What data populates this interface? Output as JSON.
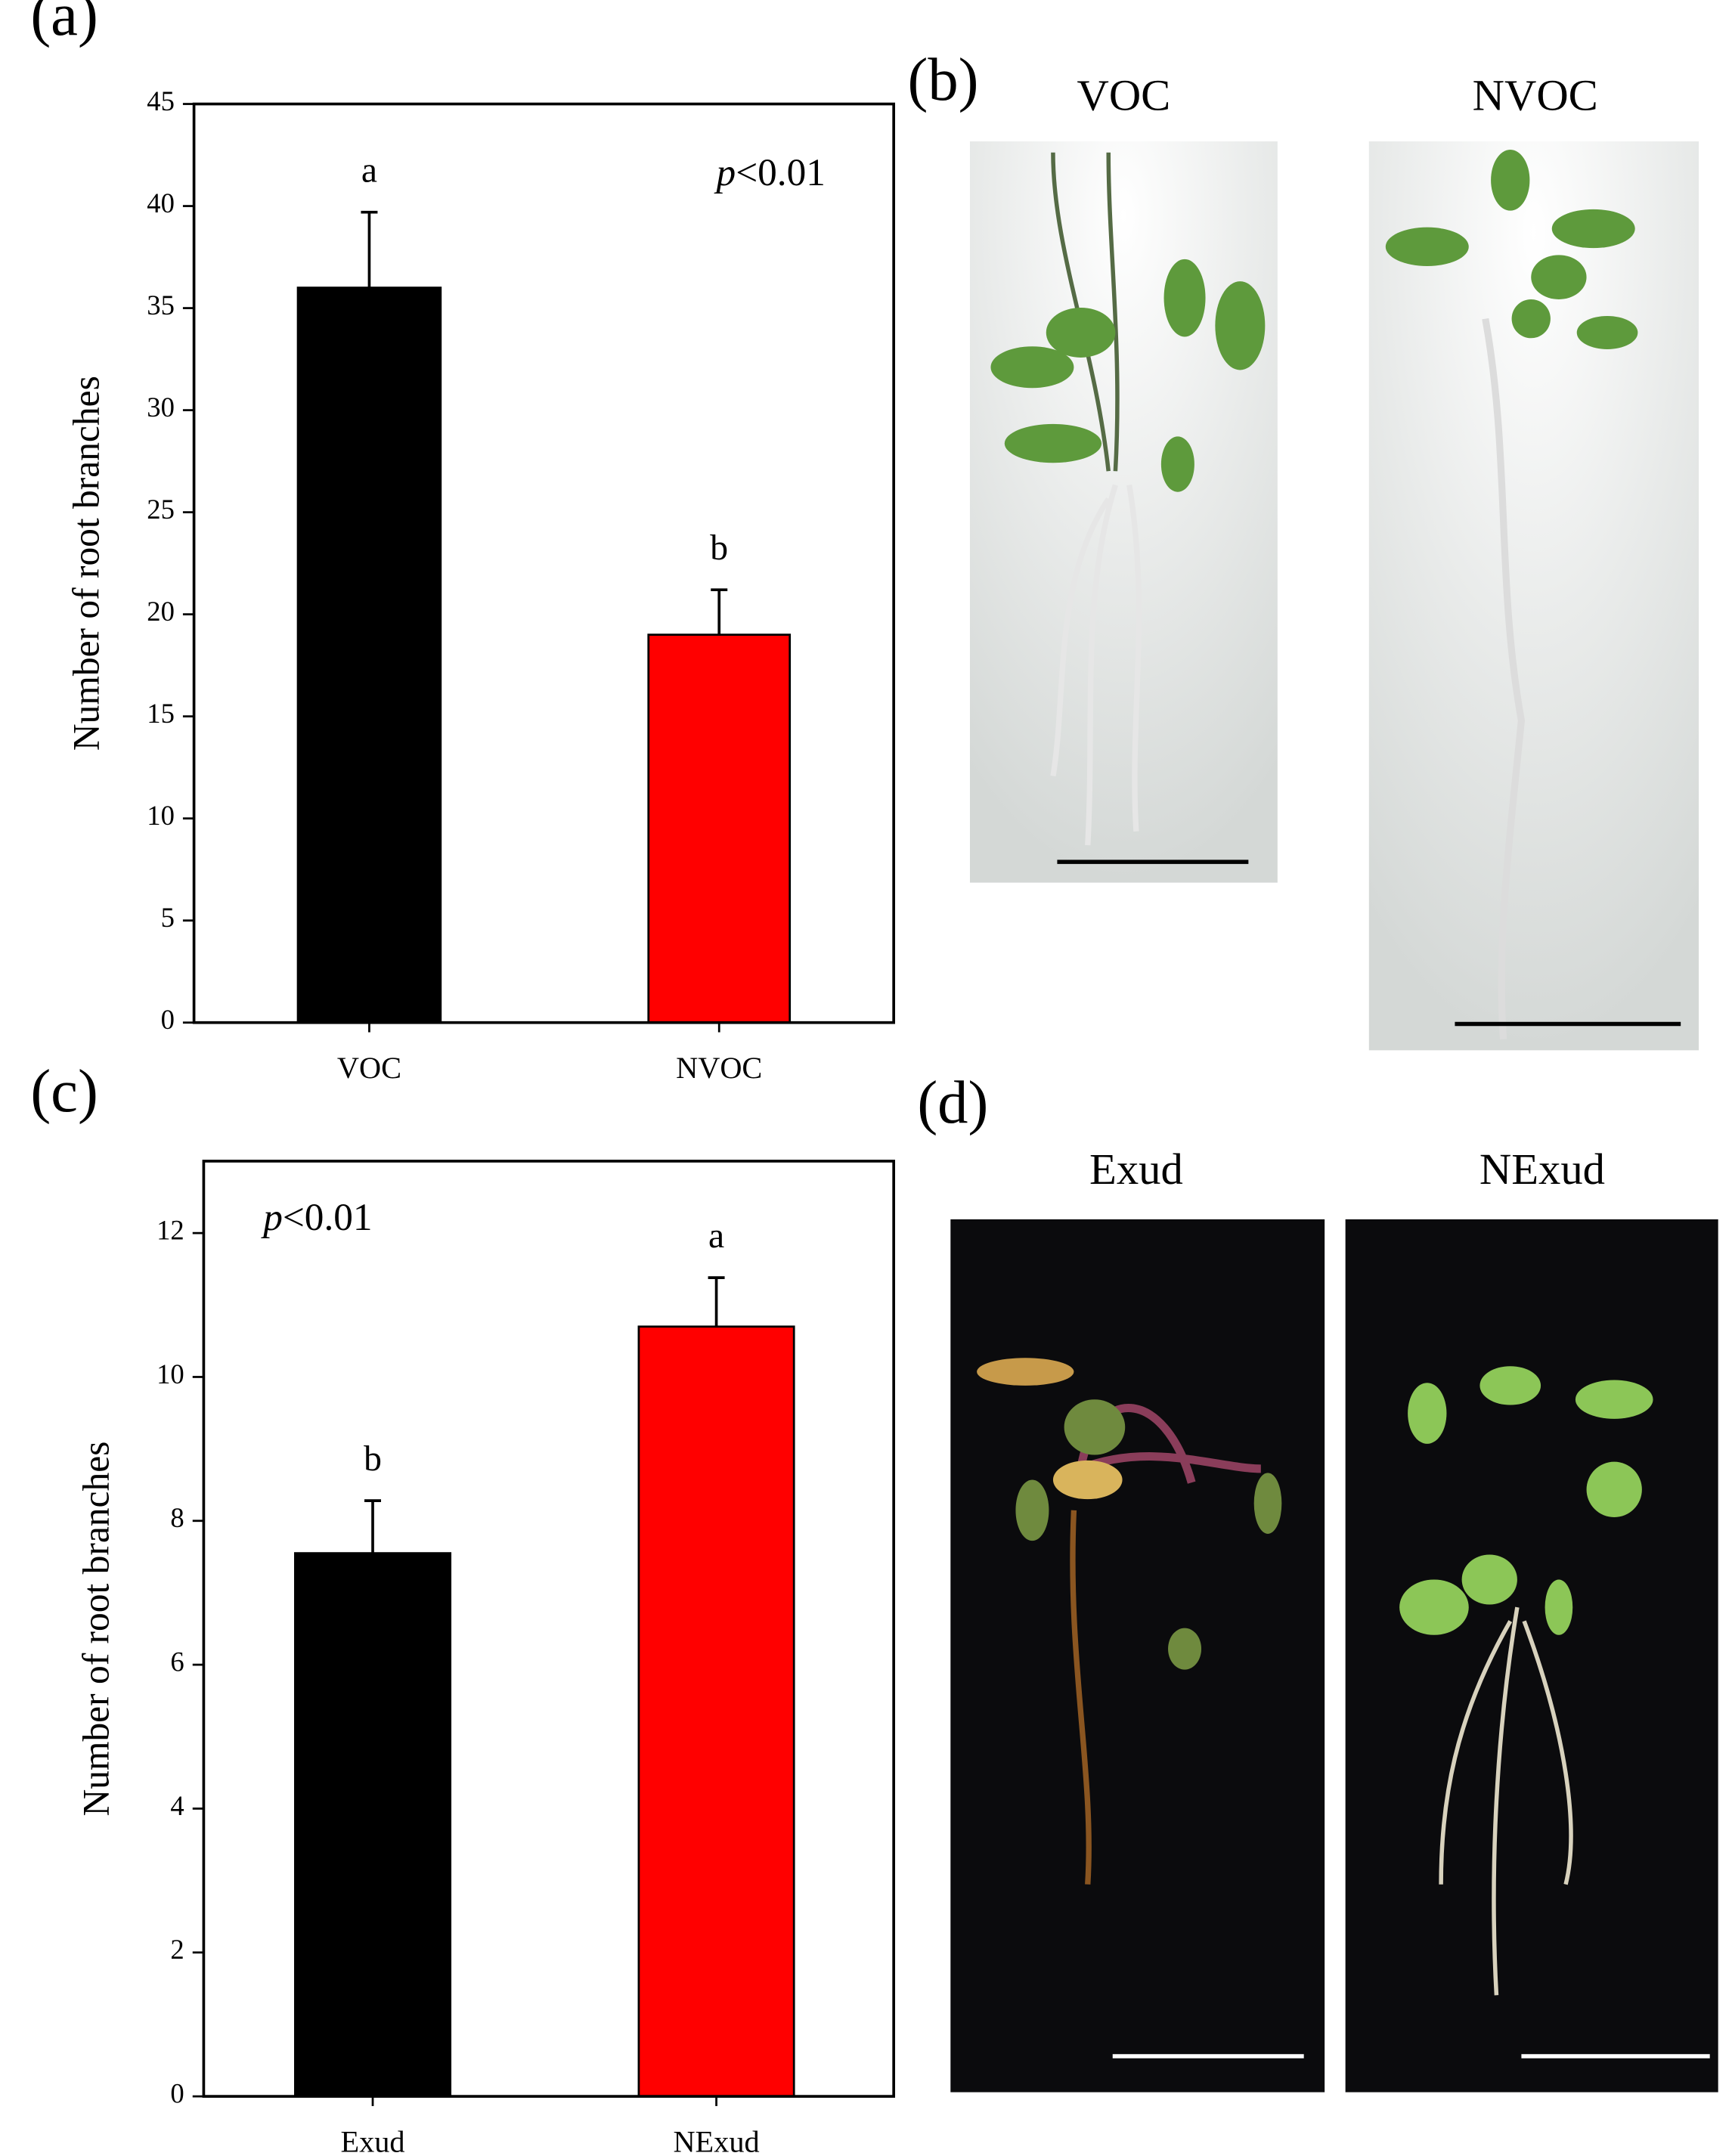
{
  "chart_data": [
    {
      "type": "bar",
      "panel_label": "(a)",
      "y_label": "Number of root branches",
      "categories": [
        "VOC",
        "NVOC"
      ],
      "values": [
        36,
        19
      ],
      "errors": [
        3.7,
        2.2
      ],
      "significance_letters": [
        "a",
        "b"
      ],
      "colors": [
        "#000000",
        "#ff0000"
      ],
      "annotation": {
        "italic": "p",
        "text": "<0.01"
      },
      "ylim": [
        0,
        45
      ],
      "yticks": [
        0,
        5,
        10,
        15,
        20,
        25,
        30,
        35,
        40,
        45
      ]
    },
    {
      "type": "bar",
      "panel_label": "(c)",
      "y_label": "Number of root branches",
      "categories": [
        "Exud",
        "NExud"
      ],
      "values": [
        7.55,
        10.7
      ],
      "errors": [
        0.73,
        0.68
      ],
      "significance_letters": [
        "b",
        "a"
      ],
      "colors": [
        "#000000",
        "#ff0000"
      ],
      "annotation": {
        "italic": "p",
        "text": "<0.01"
      },
      "ylim": [
        0,
        13
      ],
      "yticks": [
        0,
        2,
        4,
        6,
        8,
        10,
        12
      ]
    }
  ],
  "photos": [
    {
      "panel_label": "(b)",
      "titles": [
        "VOC",
        "NVOC"
      ]
    },
    {
      "panel_label": "(d)",
      "titles": [
        "Exud",
        "NExud"
      ]
    }
  ]
}
